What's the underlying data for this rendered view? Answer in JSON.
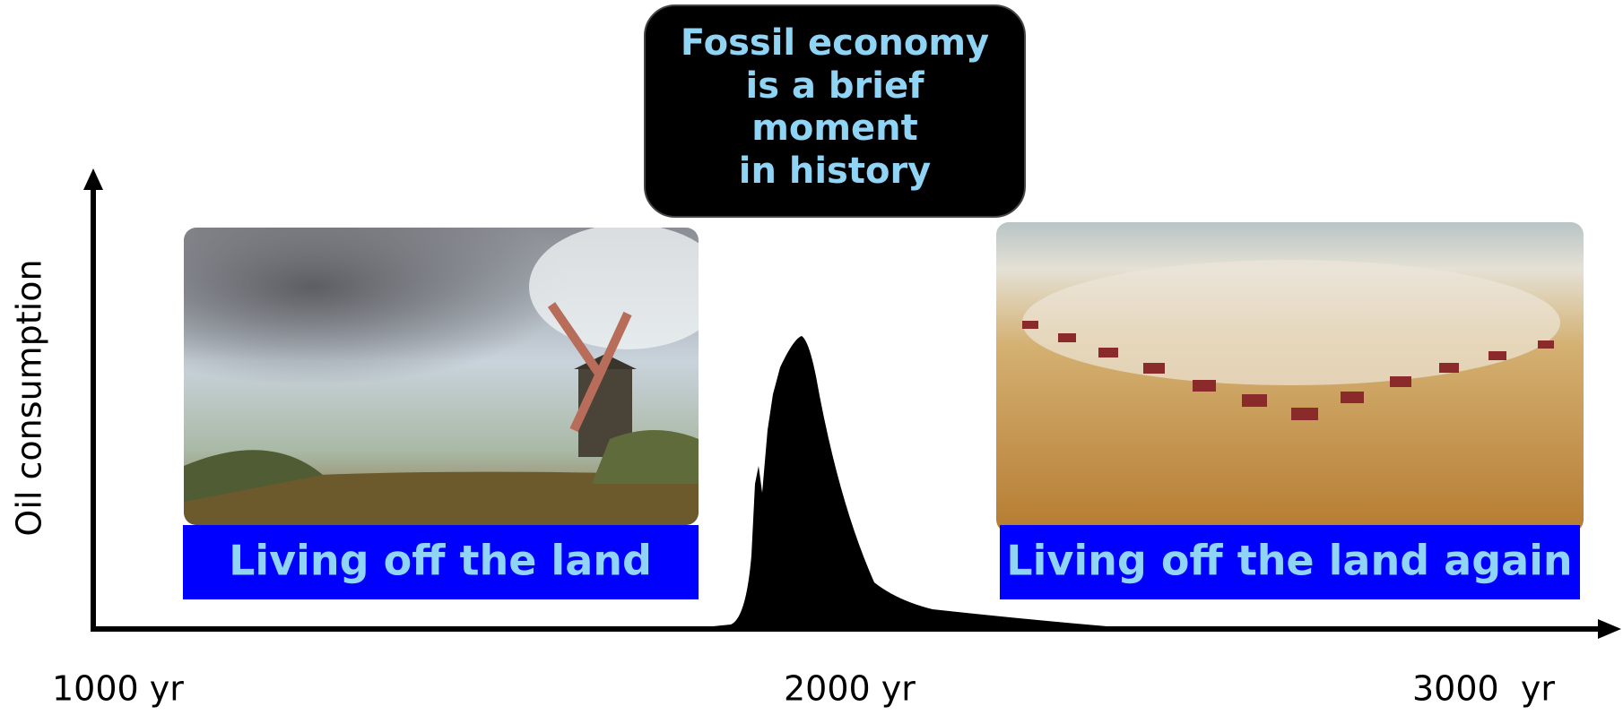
{
  "callout": {
    "lines": [
      "Fossil economy",
      "is a brief",
      "moment",
      "in history"
    ]
  },
  "axis": {
    "y_label": "Oil consumption",
    "x_labels": [
      "1000 yr",
      "2000 yr",
      "3000  yr"
    ]
  },
  "panels": [
    {
      "caption": "Living off the land"
    },
    {
      "caption": "Living off the land again"
    }
  ]
}
